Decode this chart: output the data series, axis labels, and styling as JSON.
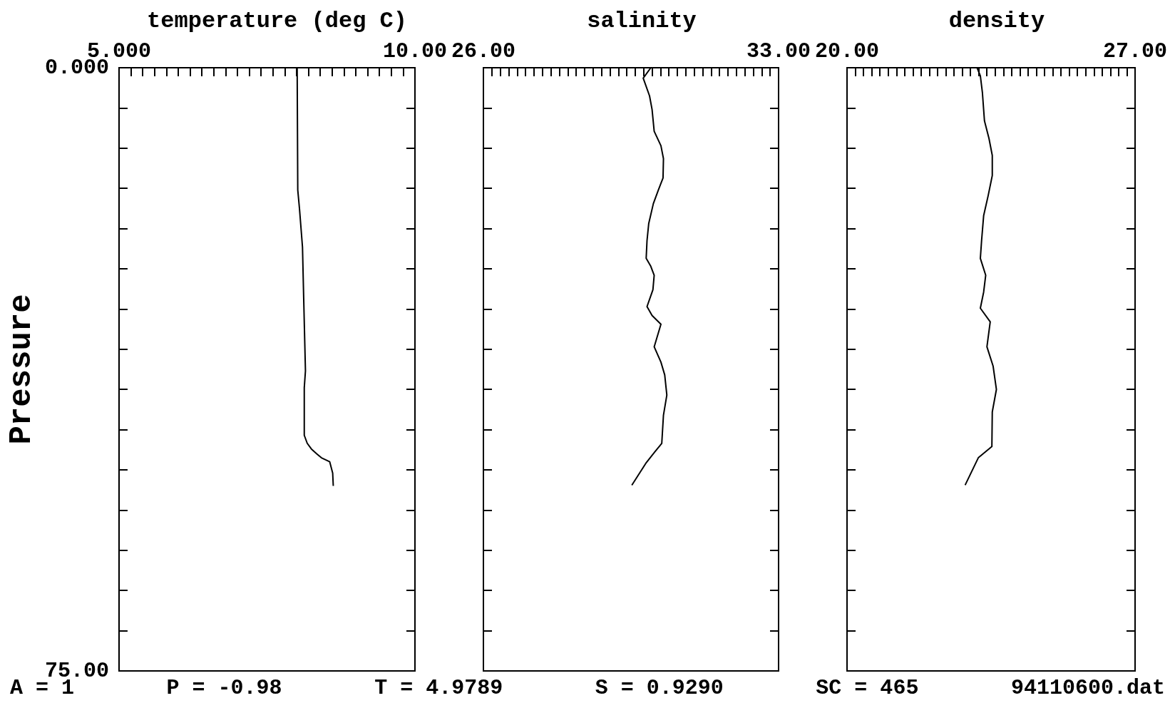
{
  "chart_data": [
    {
      "type": "line",
      "orientation": "horizontal",
      "title": "temperature (deg C)",
      "ylabel": "Pressure",
      "xlim": [
        5,
        10
      ],
      "xticks": [
        {
          "value": 5,
          "label": "5.000"
        },
        {
          "value": 5.2,
          "label": null
        },
        {
          "value": 5.4,
          "label": null
        },
        {
          "value": 5.6,
          "label": null
        },
        {
          "value": 5.8,
          "label": null
        },
        {
          "value": 6,
          "label": null
        },
        {
          "value": 6.2,
          "label": null
        },
        {
          "value": 6.4,
          "label": null
        },
        {
          "value": 6.6,
          "label": null
        },
        {
          "value": 6.8,
          "label": null
        },
        {
          "value": 7,
          "label": null
        },
        {
          "value": 7.2,
          "label": null
        },
        {
          "value": 7.4,
          "label": null
        },
        {
          "value": 7.6,
          "label": null
        },
        {
          "value": 7.8,
          "label": null
        },
        {
          "value": 8,
          "label": null
        },
        {
          "value": 8.2,
          "label": null
        },
        {
          "value": 8.4,
          "label": null
        },
        {
          "value": 8.6,
          "label": null
        },
        {
          "value": 8.8,
          "label": null
        },
        {
          "value": 9,
          "label": null
        },
        {
          "value": 9.2,
          "label": null
        },
        {
          "value": 9.4,
          "label": null
        },
        {
          "value": 9.6,
          "label": null
        },
        {
          "value": 9.8,
          "label": null
        },
        {
          "value": 10,
          "label": "10.00"
        }
      ],
      "ylim": [
        75,
        0
      ],
      "yticks": [
        {
          "value": 0,
          "label": "0.000"
        },
        {
          "value": 5,
          "label": null
        },
        {
          "value": 10,
          "label": null
        },
        {
          "value": 15,
          "label": null
        },
        {
          "value": 20,
          "label": null
        },
        {
          "value": 25,
          "label": null
        },
        {
          "value": 30,
          "label": null
        },
        {
          "value": 35,
          "label": null
        },
        {
          "value": 40,
          "label": null
        },
        {
          "value": 45,
          "label": null
        },
        {
          "value": 50,
          "label": null
        },
        {
          "value": 55,
          "label": null
        },
        {
          "value": 60,
          "label": null
        },
        {
          "value": 65,
          "label": null
        },
        {
          "value": 70,
          "label": null
        },
        {
          "value": 75,
          "label": "75.00"
        }
      ],
      "x": [
        0,
        15.2,
        17.6,
        22.3,
        28.6,
        37.7,
        39.8,
        45.7,
        46.7,
        47.4,
        48.0,
        48.5,
        49.0,
        50.4,
        52.0
      ],
      "series": [
        {
          "color": "#000000",
          "values": [
            8.01,
            8.02,
            8.05,
            8.1,
            8.12,
            8.15,
            8.13,
            8.13,
            8.18,
            8.25,
            8.34,
            8.42,
            8.56,
            8.61,
            8.62
          ]
        }
      ],
      "annotations": [
        "A = 1",
        "P = -0.98",
        "T = 4.9789",
        "S = 0.9290",
        "SC = 465",
        "94110600.dat"
      ]
    },
    {
      "type": "line",
      "orientation": "horizontal",
      "title": "salinity",
      "tick_labels": "x",
      "xlim": [
        26,
        33
      ],
      "xticks": [
        {
          "value": 26,
          "label": "26.00"
        },
        {
          "value": 26.2,
          "label": null
        },
        {
          "value": 26.4,
          "label": null
        },
        {
          "value": 26.6,
          "label": null
        },
        {
          "value": 26.8,
          "label": null
        },
        {
          "value": 27,
          "label": null
        },
        {
          "value": 27.2,
          "label": null
        },
        {
          "value": 27.4,
          "label": null
        },
        {
          "value": 27.6,
          "label": null
        },
        {
          "value": 27.8,
          "label": null
        },
        {
          "value": 28,
          "label": null
        },
        {
          "value": 28.2,
          "label": null
        },
        {
          "value": 28.4,
          "label": null
        },
        {
          "value": 28.6,
          "label": null
        },
        {
          "value": 28.8,
          "label": null
        },
        {
          "value": 29,
          "label": null
        },
        {
          "value": 29.2,
          "label": null
        },
        {
          "value": 29.4,
          "label": null
        },
        {
          "value": 29.6,
          "label": null
        },
        {
          "value": 29.8,
          "label": null
        },
        {
          "value": 30,
          "label": null
        },
        {
          "value": 30.2,
          "label": null
        },
        {
          "value": 30.4,
          "label": null
        },
        {
          "value": 30.6,
          "label": null
        },
        {
          "value": 30.8,
          "label": null
        },
        {
          "value": 31,
          "label": null
        },
        {
          "value": 31.2,
          "label": null
        },
        {
          "value": 31.4,
          "label": null
        },
        {
          "value": 31.6,
          "label": null
        },
        {
          "value": 31.8,
          "label": null
        },
        {
          "value": 32,
          "label": null
        },
        {
          "value": 32.2,
          "label": null
        },
        {
          "value": 32.4,
          "label": null
        },
        {
          "value": 32.6,
          "label": null
        },
        {
          "value": 32.8,
          "label": null
        },
        {
          "value": 33,
          "label": "33.00"
        }
      ],
      "ylim": [
        75,
        0
      ],
      "yticks": [
        {
          "value": 0,
          "label": null
        },
        {
          "value": 5,
          "label": null
        },
        {
          "value": 10,
          "label": null
        },
        {
          "value": 15,
          "label": null
        },
        {
          "value": 20,
          "label": null
        },
        {
          "value": 25,
          "label": null
        },
        {
          "value": 30,
          "label": null
        },
        {
          "value": 35,
          "label": null
        },
        {
          "value": 40,
          "label": null
        },
        {
          "value": 45,
          "label": null
        },
        {
          "value": 50,
          "label": null
        },
        {
          "value": 55,
          "label": null
        },
        {
          "value": 60,
          "label": null
        },
        {
          "value": 65,
          "label": null
        },
        {
          "value": 70,
          "label": null
        },
        {
          "value": 75,
          "label": null
        }
      ],
      "x": [
        0,
        1.3,
        3.5,
        5.2,
        7.9,
        9.7,
        11.3,
        13.7,
        15.2,
        16.9,
        19.4,
        21.5,
        23.7,
        24.7,
        25.8,
        27.6,
        29.7,
        30.8,
        31.9,
        34.7,
        36.6,
        38.2,
        40.7,
        43.2,
        46.7,
        47.8,
        49.2,
        51.9
      ],
      "series": [
        {
          "color": "#000000",
          "values": [
            29.97,
            29.79,
            29.94,
            30.0,
            30.05,
            30.21,
            30.27,
            30.26,
            30.15,
            30.03,
            29.92,
            29.88,
            29.86,
            29.97,
            30.05,
            30.02,
            29.88,
            30.0,
            30.21,
            30.05,
            30.21,
            30.3,
            30.35,
            30.27,
            30.23,
            30.06,
            29.85,
            29.52
          ]
        }
      ]
    },
    {
      "type": "line",
      "orientation": "horizontal",
      "title": "density",
      "tick_labels": "x",
      "xlim": [
        20,
        27
      ],
      "xticks": [
        {
          "value": 20,
          "label": "20.00"
        },
        {
          "value": 20.2,
          "label": null
        },
        {
          "value": 20.4,
          "label": null
        },
        {
          "value": 20.6,
          "label": null
        },
        {
          "value": 20.8,
          "label": null
        },
        {
          "value": 21,
          "label": null
        },
        {
          "value": 21.2,
          "label": null
        },
        {
          "value": 21.4,
          "label": null
        },
        {
          "value": 21.6,
          "label": null
        },
        {
          "value": 21.8,
          "label": null
        },
        {
          "value": 22,
          "label": null
        },
        {
          "value": 22.2,
          "label": null
        },
        {
          "value": 22.4,
          "label": null
        },
        {
          "value": 22.6,
          "label": null
        },
        {
          "value": 22.8,
          "label": null
        },
        {
          "value": 23,
          "label": null
        },
        {
          "value": 23.2,
          "label": null
        },
        {
          "value": 23.4,
          "label": null
        },
        {
          "value": 23.6,
          "label": null
        },
        {
          "value": 23.8,
          "label": null
        },
        {
          "value": 24,
          "label": null
        },
        {
          "value": 24.2,
          "label": null
        },
        {
          "value": 24.4,
          "label": null
        },
        {
          "value": 24.6,
          "label": null
        },
        {
          "value": 24.8,
          "label": null
        },
        {
          "value": 25,
          "label": null
        },
        {
          "value": 25.2,
          "label": null
        },
        {
          "value": 25.4,
          "label": null
        },
        {
          "value": 25.6,
          "label": null
        },
        {
          "value": 25.8,
          "label": null
        },
        {
          "value": 26,
          "label": null
        },
        {
          "value": 26.2,
          "label": null
        },
        {
          "value": 26.4,
          "label": null
        },
        {
          "value": 26.6,
          "label": null
        },
        {
          "value": 26.8,
          "label": null
        },
        {
          "value": 27,
          "label": "27.00"
        }
      ],
      "ylim": [
        75,
        0
      ],
      "yticks": [
        {
          "value": 0,
          "label": null
        },
        {
          "value": 5,
          "label": null
        },
        {
          "value": 10,
          "label": null
        },
        {
          "value": 15,
          "label": null
        },
        {
          "value": 20,
          "label": null
        },
        {
          "value": 25,
          "label": null
        },
        {
          "value": 30,
          "label": null
        },
        {
          "value": 35,
          "label": null
        },
        {
          "value": 40,
          "label": null
        },
        {
          "value": 45,
          "label": null
        },
        {
          "value": 50,
          "label": null
        },
        {
          "value": 55,
          "label": null
        },
        {
          "value": 60,
          "label": null
        },
        {
          "value": 65,
          "label": null
        },
        {
          "value": 70,
          "label": null
        },
        {
          "value": 75,
          "label": null
        }
      ],
      "x": [
        0,
        1.0,
        3.1,
        6.6,
        8.8,
        10.9,
        13.4,
        15.9,
        18.4,
        21.5,
        23.7,
        25.8,
        27.9,
        29.9,
        31.6,
        34.7,
        37.1,
        40.0,
        42.8,
        47.1,
        48.5,
        51.9
      ],
      "series": [
        {
          "color": "#000000",
          "values": [
            23.16,
            23.24,
            23.29,
            23.34,
            23.45,
            23.53,
            23.53,
            23.43,
            23.32,
            23.27,
            23.24,
            23.37,
            23.32,
            23.24,
            23.48,
            23.4,
            23.55,
            23.63,
            23.53,
            23.52,
            23.19,
            22.87
          ]
        }
      ]
    }
  ]
}
